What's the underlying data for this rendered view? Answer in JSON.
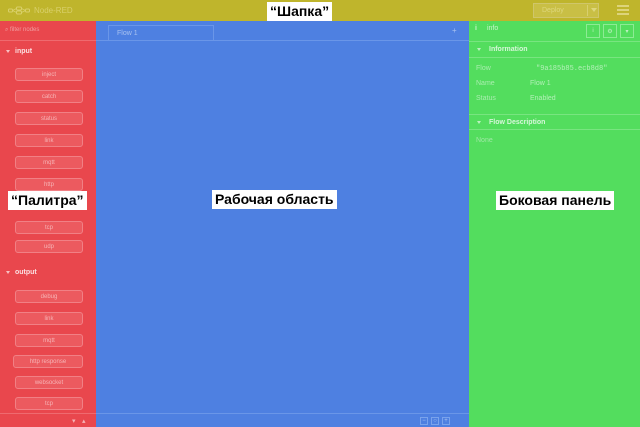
{
  "header": {
    "app_title": "Node-RED",
    "deploy_label": "Deploy",
    "icons": {
      "logo": "node-red-logo-icon",
      "menu": "hamburger-menu-icon",
      "deploy_caret": "caret-down-icon"
    },
    "color": "#bfb52c"
  },
  "palette": {
    "search_placeholder": "filter nodes",
    "color": "#e9474d",
    "categories": [
      {
        "label": "input",
        "nodes": [
          "inject",
          "catch",
          "status",
          "link",
          "mqtt",
          "http",
          "",
          "",
          "tcp",
          "udp"
        ]
      },
      {
        "label": "output",
        "nodes": [
          "debug",
          "link",
          "mqtt",
          "http response",
          "websocket",
          "tcp"
        ]
      }
    ]
  },
  "workspace": {
    "tab_label": "Flow 1",
    "add_tab_icon": "plus-icon",
    "footer_buttons": [
      "−",
      "○",
      "+"
    ],
    "color": "#4e80e1"
  },
  "sidebar": {
    "tab_label": "info",
    "info_icon": "info-icon",
    "color": "#53dd5e",
    "sections": {
      "information": "Information",
      "flow_description": "Flow Description"
    },
    "properties": [
      {
        "key": "Flow",
        "value": "\"9a185b85.ecb8d8\""
      },
      {
        "key": "Name",
        "value": "Flow 1"
      },
      {
        "key": "Status",
        "value": "Enabled"
      }
    ],
    "description_value": "None"
  },
  "labels": {
    "header": "“Шапка”",
    "palette": "“Палитра”",
    "workspace": "Рабочая область",
    "sidebar": "Боковая панель"
  }
}
